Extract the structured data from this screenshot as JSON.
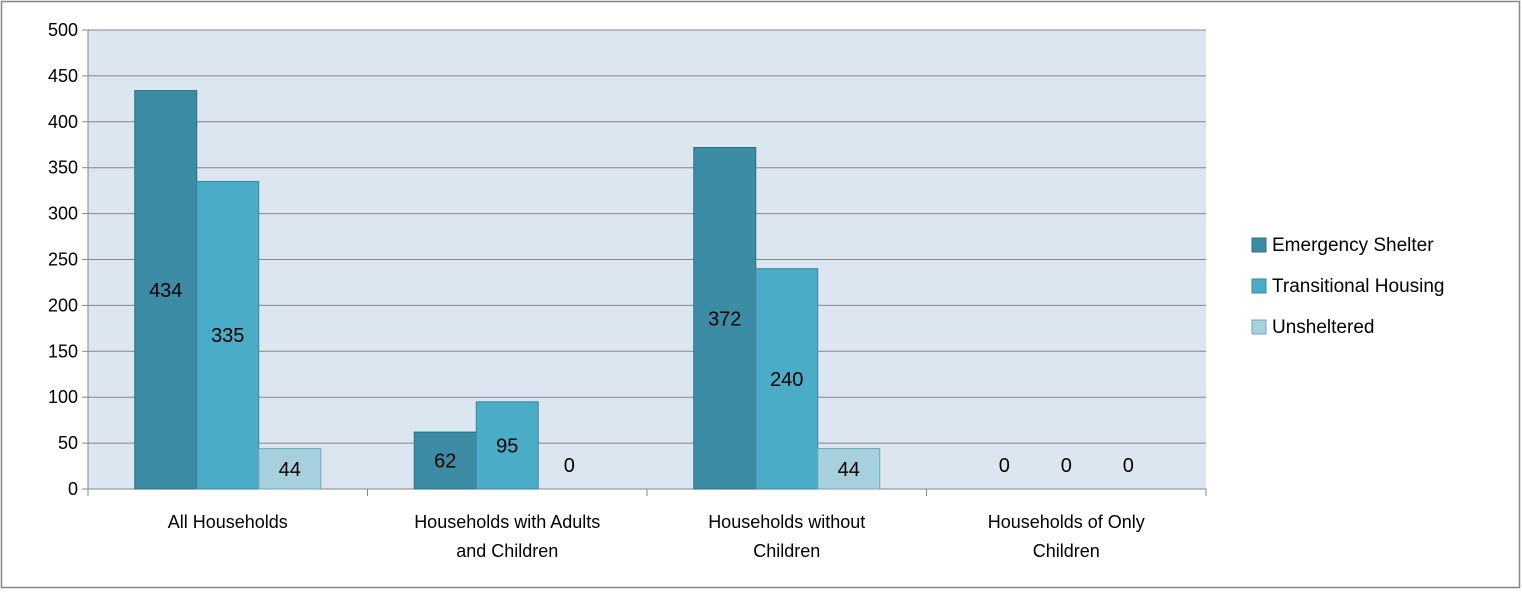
{
  "chart_data": {
    "type": "bar",
    "categories": [
      [
        "All Households"
      ],
      [
        "Households with Adults",
        "and Children"
      ],
      [
        "Households without",
        "Children"
      ],
      [
        "Households of Only",
        "Children"
      ]
    ],
    "series": [
      {
        "name": "Emergency Shelter",
        "values": [
          434,
          62,
          372,
          0
        ]
      },
      {
        "name": "Transitional Housing",
        "values": [
          335,
          95,
          240,
          0
        ]
      },
      {
        "name": "Unsheltered",
        "values": [
          44,
          0,
          44,
          0
        ]
      }
    ],
    "ylim": [
      0,
      500
    ],
    "yticks": [
      0,
      50,
      100,
      150,
      200,
      250,
      300,
      350,
      400,
      450,
      500
    ],
    "grid": true,
    "legend": "right",
    "data_labels": true,
    "title": "",
    "xlabel": "",
    "ylabel": ""
  },
  "colors": {
    "plot_background": "#DCE6F0",
    "series": [
      "#3C8CA5",
      "#4AACC6",
      "#A6D0DD"
    ],
    "series_border": [
      "#2E6E82",
      "#3A8AA0",
      "#6FA8B8"
    ],
    "gridline": "#878787",
    "frame": "#868686"
  }
}
